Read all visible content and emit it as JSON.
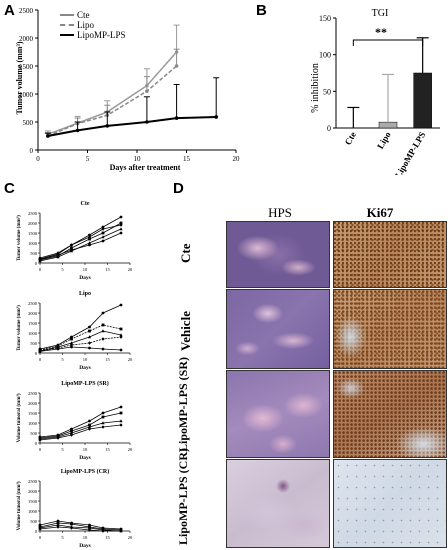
{
  "panels": {
    "a": "A",
    "b": "B",
    "c": "C",
    "d": "D"
  },
  "panel_a": {
    "legend": [
      "Cte",
      "Lipo",
      "LipoMP-LPS"
    ],
    "ylabel": "Tumor volume (mm³)",
    "xlabel": "Days after treatment",
    "yticks": [
      "0",
      "500",
      "1000",
      "1500",
      "2000",
      "2500"
    ],
    "xticks": [
      "0",
      "5",
      "10",
      "15",
      "20"
    ]
  },
  "panel_b": {
    "title": "TGI",
    "ylabel": "% inhibition",
    "significance": "**",
    "yticks": [
      "0",
      "50",
      "100",
      "150"
    ],
    "categories": [
      "Cte",
      "Lipo",
      "LipoMP-LPS"
    ]
  },
  "panel_c": {
    "titles": [
      "Cte",
      "Lipo",
      "LipoMP-LPS (SR)",
      "LipoMP-LPS (CR)"
    ],
    "ylabels": [
      "Tumor volume (mm³)",
      "Tumor volume (mm³)",
      "Volume tumoral (mm³)",
      "Volume tumoral (mm³)"
    ],
    "xlabel": "Days"
  },
  "panel_d": {
    "columns": [
      "HPS",
      "Ki67"
    ],
    "rows": [
      "Cte",
      "Vehicle",
      "LipoMP-LPS (SR)",
      "LipoMP-LPS (CR)"
    ]
  },
  "chart_data": [
    {
      "type": "line",
      "panel": "A",
      "series": [
        {
          "name": "Cte",
          "x": [
            1,
            4,
            7,
            11,
            14
          ],
          "y": [
            280,
            480,
            680,
            1150,
            1750
          ],
          "err": [
            60,
            120,
            200,
            300,
            480
          ]
        },
        {
          "name": "Lipo",
          "x": [
            1,
            4,
            7,
            11,
            14
          ],
          "y": [
            250,
            470,
            620,
            1050,
            1500
          ],
          "err": [
            60,
            100,
            180,
            260,
            300
          ]
        },
        {
          "name": "LipoMP-LPS",
          "x": [
            1,
            4,
            7,
            11,
            14,
            18
          ],
          "y": [
            250,
            350,
            430,
            500,
            570,
            590
          ],
          "err": [
            50,
            150,
            250,
            450,
            600,
            700
          ]
        }
      ],
      "xlabel": "Days after treatment",
      "ylabel": "Tumor volume (mm³)",
      "xlim": [
        0,
        20
      ],
      "ylim": [
        0,
        2500
      ],
      "legend_position": "top-left"
    },
    {
      "type": "bar",
      "panel": "B",
      "title": "TGI",
      "categories": [
        "Cte",
        "Lipo",
        "LipoMP-LPS"
      ],
      "values": [
        0,
        8,
        75
      ],
      "err": [
        28,
        65,
        48
      ],
      "ylabel": "% inhibition",
      "ylim": [
        0,
        150
      ]
    },
    {
      "type": "line",
      "panel": "C-Cte",
      "title": "Cte",
      "series": [
        {
          "x": [
            0,
            4,
            7,
            11,
            14,
            18
          ],
          "y": [
            200,
            450,
            900,
            1400,
            1800,
            2300
          ]
        },
        {
          "x": [
            0,
            4,
            7,
            11,
            14,
            18
          ],
          "y": [
            150,
            350,
            750,
            1200,
            1500,
            2000
          ]
        },
        {
          "x": [
            0,
            4,
            7,
            11,
            14,
            18
          ],
          "y": [
            100,
            300,
            600,
            1000,
            1300,
            1700
          ]
        },
        {
          "x": [
            0,
            4,
            7,
            11,
            14,
            18
          ],
          "y": [
            250,
            500,
            900,
            1300,
            1700,
            1900
          ]
        },
        {
          "x": [
            0,
            4,
            7,
            11,
            14,
            18
          ],
          "y": [
            180,
            400,
            650,
            900,
            1100,
            1500
          ]
        }
      ],
      "xlabel": "Days",
      "ylabel": "Tumor volume (mm³)",
      "xlim": [
        0,
        20
      ],
      "ylim": [
        0,
        2500
      ]
    },
    {
      "type": "line",
      "panel": "C-Lipo",
      "title": "Lipo",
      "series": [
        {
          "x": [
            0,
            4,
            7,
            11,
            14,
            18
          ],
          "y": [
            200,
            400,
            800,
            1300,
            2000,
            2400
          ]
        },
        {
          "x": [
            0,
            4,
            7,
            11,
            14,
            18
          ],
          "y": [
            150,
            350,
            700,
            1100,
            1400,
            1200
          ]
        },
        {
          "x": [
            0,
            4,
            7,
            11,
            14,
            18
          ],
          "y": [
            100,
            300,
            500,
            800,
            1100,
            900
          ]
        },
        {
          "x": [
            0,
            4,
            7,
            11,
            14,
            18
          ],
          "y": [
            120,
            250,
            400,
            500,
            700,
            800
          ]
        },
        {
          "x": [
            0,
            4,
            7,
            11,
            14,
            18
          ],
          "y": [
            80,
            200,
            300,
            250,
            200,
            150
          ]
        }
      ],
      "xlabel": "Days",
      "ylabel": "Tumor volume (mm³)",
      "xlim": [
        0,
        20
      ],
      "ylim": [
        0,
        2500
      ]
    },
    {
      "type": "line",
      "panel": "C-SR",
      "title": "LipoMP-LPS (SR)",
      "series": [
        {
          "x": [
            0,
            4,
            7,
            11,
            14,
            18
          ],
          "y": [
            300,
            400,
            700,
            1100,
            1500,
            1800
          ]
        },
        {
          "x": [
            0,
            4,
            7,
            11,
            14,
            18
          ],
          "y": [
            250,
            350,
            600,
            900,
            1300,
            1500
          ]
        },
        {
          "x": [
            0,
            4,
            7,
            11,
            14,
            18
          ],
          "y": [
            200,
            300,
            500,
            800,
            1000,
            1100
          ]
        },
        {
          "x": [
            0,
            4,
            7,
            11,
            14,
            18
          ],
          "y": [
            150,
            250,
            400,
            700,
            800,
            900
          ]
        }
      ],
      "xlabel": "Days",
      "ylabel": "Volume tumoral (mm³)",
      "xlim": [
        0,
        20
      ],
      "ylim": [
        0,
        2500
      ]
    },
    {
      "type": "line",
      "panel": "C-CR",
      "title": "LipoMP-LPS (CR)",
      "series": [
        {
          "x": [
            0,
            4,
            7,
            11,
            14,
            18
          ],
          "y": [
            300,
            500,
            400,
            300,
            150,
            100
          ]
        },
        {
          "x": [
            0,
            4,
            7,
            11,
            14,
            18
          ],
          "y": [
            200,
            400,
            350,
            200,
            100,
            50
          ]
        },
        {
          "x": [
            0,
            4,
            7,
            11,
            14,
            18
          ],
          "y": [
            150,
            300,
            200,
            150,
            50,
            0
          ]
        },
        {
          "x": [
            0,
            4,
            7,
            11,
            14,
            18
          ],
          "y": [
            100,
            200,
            150,
            50,
            0,
            0
          ]
        }
      ],
      "xlabel": "Days",
      "ylabel": "Volume tumoral (mm³)",
      "xlim": [
        0,
        20
      ],
      "ylim": [
        0,
        2500
      ]
    }
  ]
}
